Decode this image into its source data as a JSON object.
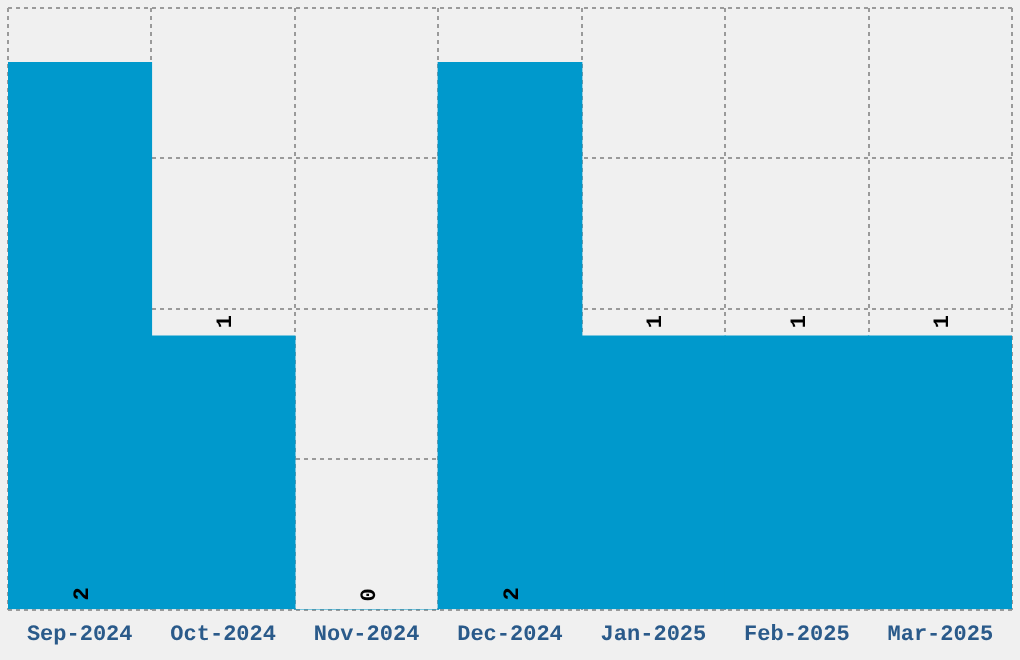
{
  "chart_data": {
    "type": "bar",
    "categories": [
      "Sep-2024",
      "Oct-2024",
      "Nov-2024",
      "Dec-2024",
      "Jan-2025",
      "Feb-2025",
      "Mar-2025"
    ],
    "values": [
      2,
      1,
      0,
      2,
      1,
      1,
      1
    ],
    "color": "#0099cc",
    "ylim": [
      0,
      2.2
    ],
    "yticks": [
      {
        "value": 0,
        "label": null
      },
      {
        "value": 0.55,
        "label": null
      },
      {
        "value": 1.1,
        "label": null
      },
      {
        "value": 1.65,
        "label": null
      },
      {
        "value": 2.2,
        "label": null
      }
    ],
    "grid": true,
    "data_labels": true
  }
}
